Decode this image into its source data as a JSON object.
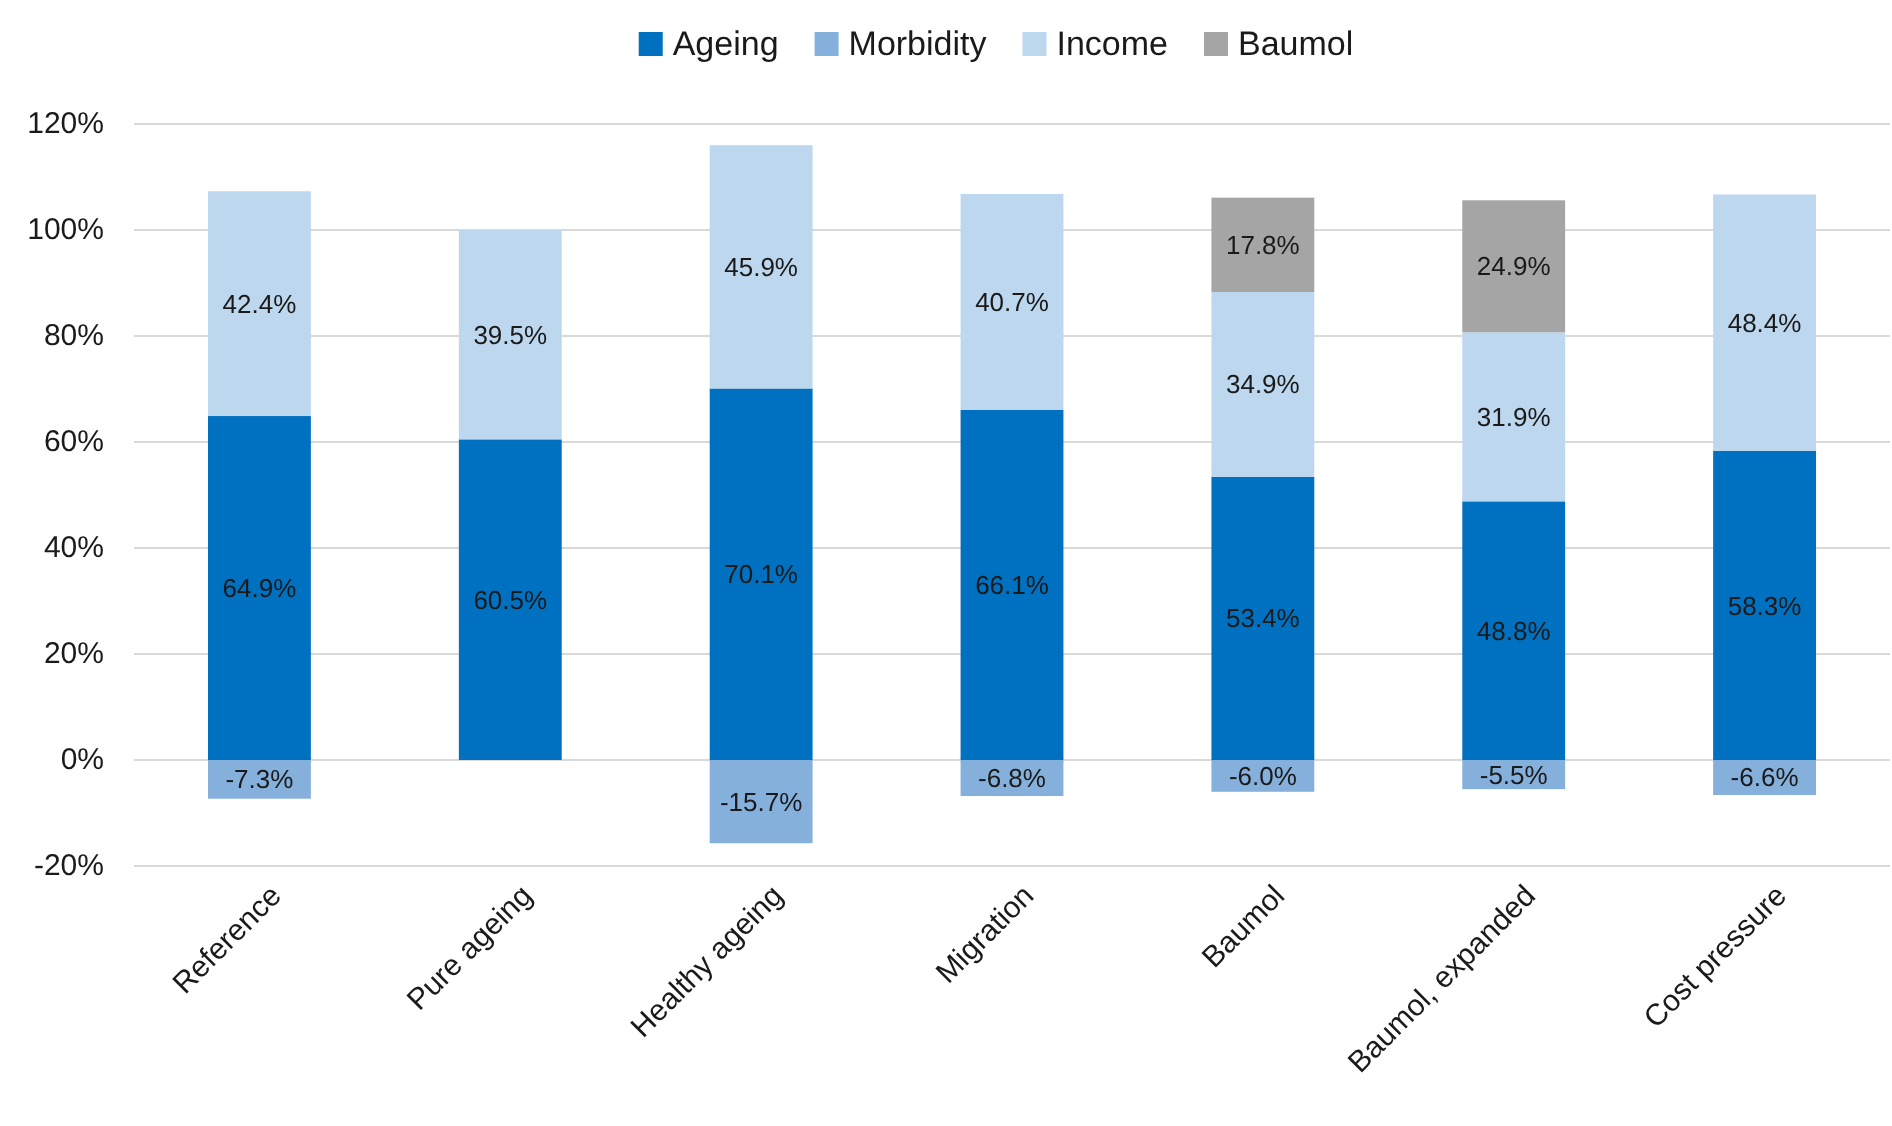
{
  "chart_data": {
    "type": "bar",
    "stacked": true,
    "categories": [
      "Reference",
      "Pure ageing",
      "Healthy ageing",
      "Migration",
      "Baumol",
      "Baumol, expanded",
      "Cost pressure"
    ],
    "series": [
      {
        "name": "Ageing",
        "color": "#0070c0",
        "values": [
          64.9,
          60.5,
          70.1,
          66.1,
          53.4,
          48.8,
          58.3
        ],
        "value_labels": [
          "64.9%",
          "60.5%",
          "70.1%",
          "66.1%",
          "53.4%",
          "48.8%",
          "58.3%"
        ]
      },
      {
        "name": "Morbidity",
        "color": "#85b0dc",
        "values": [
          -7.3,
          null,
          -15.7,
          -6.8,
          -6.0,
          -5.5,
          -6.6
        ],
        "value_labels": [
          "-7.3%",
          null,
          "-15.7%",
          "-6.8%",
          "-6.0%",
          "-5.5%",
          "-6.6%"
        ]
      },
      {
        "name": "Income",
        "color": "#bdd7ee",
        "values": [
          42.4,
          39.5,
          45.9,
          40.7,
          34.9,
          31.9,
          48.4
        ],
        "value_labels": [
          "42.4%",
          "39.5%",
          "45.9%",
          "40.7%",
          "34.9%",
          "31.9%",
          "48.4%"
        ]
      },
      {
        "name": "Baumol",
        "color": "#a5a5a5",
        "values": [
          null,
          null,
          null,
          null,
          17.8,
          24.9,
          null
        ],
        "value_labels": [
          null,
          null,
          null,
          null,
          "17.8%",
          "24.9%",
          null
        ]
      }
    ],
    "ylim": [
      -20,
      120
    ],
    "yticks": [
      {
        "value": -20,
        "label": "-20%"
      },
      {
        "value": 0,
        "label": "0%"
      },
      {
        "value": 20,
        "label": "20%"
      },
      {
        "value": 40,
        "label": "40%"
      },
      {
        "value": 60,
        "label": "60%"
      },
      {
        "value": 80,
        "label": "80%"
      },
      {
        "value": 100,
        "label": "100%"
      },
      {
        "value": 120,
        "label": "120%"
      }
    ],
    "grid": "y",
    "legend": "top"
  }
}
